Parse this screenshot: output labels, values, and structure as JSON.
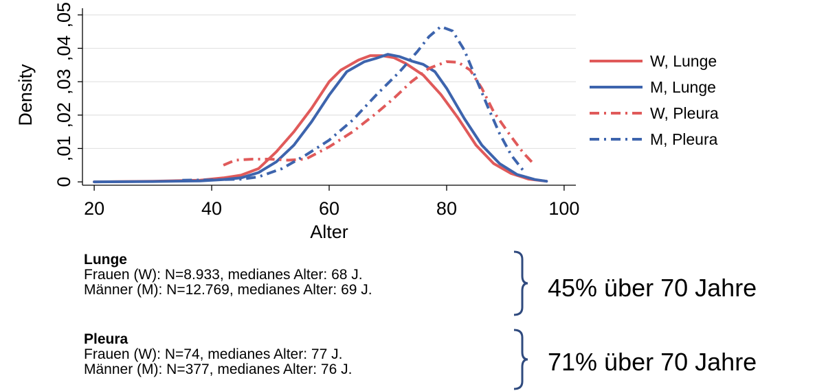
{
  "chart_data": {
    "type": "line",
    "xlabel": "Alter",
    "ylabel": "Density",
    "xlim": [
      18,
      102
    ],
    "ylim": [
      -0.001,
      0.052
    ],
    "x_ticks": [
      20,
      40,
      60,
      80,
      100
    ],
    "x_tick_labels": [
      "20",
      "40",
      "60",
      "80",
      "100"
    ],
    "y_ticks": [
      0,
      0.01,
      0.02,
      0.03,
      0.04,
      0.05
    ],
    "y_tick_labels": [
      "0",
      ",01",
      ",02",
      ",03",
      ",04",
      ",05"
    ],
    "grid": "horizontal",
    "legend_position": "right",
    "series": [
      {
        "name": "W, Lunge",
        "color": "#e05a5a",
        "style": "solid",
        "points": [
          [
            20,
            0
          ],
          [
            30,
            0.0002
          ],
          [
            38,
            0.0005
          ],
          [
            42,
            0.0012
          ],
          [
            45,
            0.002
          ],
          [
            48,
            0.004
          ],
          [
            51,
            0.009
          ],
          [
            54,
            0.015
          ],
          [
            57,
            0.022
          ],
          [
            60,
            0.03
          ],
          [
            62,
            0.0335
          ],
          [
            65,
            0.0365
          ],
          [
            67,
            0.0378
          ],
          [
            69,
            0.0378
          ],
          [
            71,
            0.0372
          ],
          [
            73,
            0.0355
          ],
          [
            76,
            0.032
          ],
          [
            79,
            0.0262
          ],
          [
            82,
            0.019
          ],
          [
            85,
            0.011
          ],
          [
            88,
            0.0055
          ],
          [
            91,
            0.0025
          ],
          [
            94,
            0.0008
          ],
          [
            97,
            0.0002
          ]
        ]
      },
      {
        "name": "M, Lunge",
        "color": "#3d64ad",
        "style": "solid",
        "points": [
          [
            20,
            0
          ],
          [
            30,
            0.0001
          ],
          [
            38,
            0.0003
          ],
          [
            42,
            0.0007
          ],
          [
            45,
            0.0012
          ],
          [
            48,
            0.0028
          ],
          [
            51,
            0.006
          ],
          [
            54,
            0.011
          ],
          [
            57,
            0.018
          ],
          [
            60,
            0.026
          ],
          [
            63,
            0.033
          ],
          [
            66,
            0.036
          ],
          [
            68,
            0.037
          ],
          [
            70,
            0.0382
          ],
          [
            72,
            0.0375
          ],
          [
            74,
            0.0362
          ],
          [
            76,
            0.0352
          ],
          [
            78,
            0.033
          ],
          [
            80,
            0.028
          ],
          [
            83,
            0.019
          ],
          [
            86,
            0.011
          ],
          [
            89,
            0.0055
          ],
          [
            92,
            0.0022
          ],
          [
            95,
            0.0007
          ],
          [
            97,
            0.0002
          ]
        ]
      },
      {
        "name": "W, Pleura",
        "color": "#e05a5a",
        "style": "dashdot",
        "points": [
          [
            42,
            0.005
          ],
          [
            44,
            0.0065
          ],
          [
            47,
            0.0068
          ],
          [
            50,
            0.0068
          ],
          [
            53,
            0.0065
          ],
          [
            56,
            0.0068
          ],
          [
            60,
            0.0105
          ],
          [
            64,
            0.015
          ],
          [
            68,
            0.0205
          ],
          [
            71,
            0.025
          ],
          [
            74,
            0.03
          ],
          [
            77,
            0.034
          ],
          [
            80,
            0.036
          ],
          [
            82,
            0.0358
          ],
          [
            84,
            0.0335
          ],
          [
            86,
            0.028
          ],
          [
            88,
            0.021
          ],
          [
            91,
            0.0135
          ],
          [
            93,
            0.0088
          ],
          [
            95,
            0.005
          ]
        ]
      },
      {
        "name": "M, Pleura",
        "color": "#3d64ad",
        "style": "dashdot",
        "points": [
          [
            35,
            0.0005
          ],
          [
            40,
            0.0006
          ],
          [
            45,
            0.0008
          ],
          [
            48,
            0.0015
          ],
          [
            52,
            0.004
          ],
          [
            56,
            0.008
          ],
          [
            60,
            0.0125
          ],
          [
            64,
            0.0185
          ],
          [
            68,
            0.026
          ],
          [
            72,
            0.033
          ],
          [
            75,
            0.039
          ],
          [
            77,
            0.0435
          ],
          [
            79,
            0.0465
          ],
          [
            81,
            0.0452
          ],
          [
            83,
            0.0395
          ],
          [
            85,
            0.031
          ],
          [
            87,
            0.0225
          ],
          [
            89,
            0.0145
          ],
          [
            91,
            0.008
          ],
          [
            93,
            0.0035
          ]
        ]
      }
    ]
  },
  "notes": {
    "lunge": {
      "heading": "Lunge",
      "line1": "Frauen (W): N=8.933, medianes Alter: 68 J.",
      "line2": "Männer (M): N=12.769, medianes Alter: 69 J.",
      "summary": "45% über 70 Jahre"
    },
    "pleura": {
      "heading": "Pleura",
      "line1": "Frauen (W): N=74, medianes Alter: 77 J.",
      "line2": "Männer (M): N=377, medianes Alter: 76 J.",
      "summary": "71% über 70 Jahre"
    }
  },
  "colors": {
    "red": "#e05a5a",
    "blue": "#3d64ad",
    "brace": "#2f4a7e"
  }
}
